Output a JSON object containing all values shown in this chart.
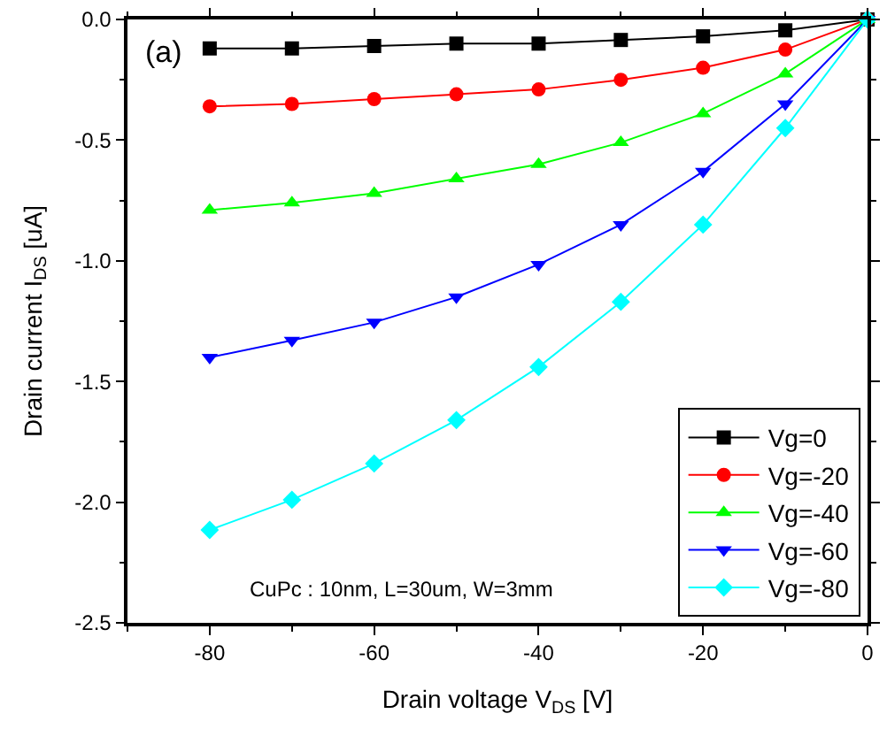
{
  "chart_data": {
    "type": "line",
    "xlabel": "Drain voltage V$_{DS}$ [V]",
    "ylabel": "Drain current I$_{DS}$ [uA]",
    "x": [
      -80,
      -70,
      -60,
      -50,
      -40,
      -30,
      -20,
      -10,
      0
    ],
    "series": [
      {
        "name": "Vg=0",
        "color": "#000000",
        "marker": "square",
        "values": [
          -0.12,
          -0.12,
          -0.11,
          -0.1,
          -0.1,
          -0.085,
          -0.07,
          -0.045,
          0
        ]
      },
      {
        "name": "Vg=-20",
        "color": "#ff0000",
        "marker": "circle",
        "values": [
          -0.36,
          -0.35,
          -0.33,
          -0.31,
          -0.29,
          -0.25,
          -0.2,
          -0.125,
          0
        ]
      },
      {
        "name": "Vg=-40",
        "color": "#00ff00",
        "marker": "triangle",
        "values": [
          -0.79,
          -0.76,
          -0.72,
          -0.66,
          -0.6,
          -0.51,
          -0.39,
          -0.225,
          0
        ]
      },
      {
        "name": "Vg=-60",
        "color": "#0000ff",
        "marker": "triangle-down",
        "values": [
          -1.4,
          -1.33,
          -1.255,
          -1.15,
          -1.015,
          -0.85,
          -0.63,
          -0.35,
          0
        ]
      },
      {
        "name": "Vg=-80",
        "color": "#00ffff",
        "marker": "diamond",
        "values": [
          -2.115,
          -1.99,
          -1.84,
          -1.66,
          -1.44,
          -1.17,
          -0.85,
          -0.45,
          0
        ]
      }
    ],
    "xlim": [
      -90,
      0
    ],
    "xticks": [
      -80,
      -60,
      -40,
      -20,
      0
    ],
    "ylim": [
      -2.5,
      0
    ],
    "yticks": [
      {
        "value": -2.5,
        "label": "-2.5"
      },
      {
        "value": -2.0,
        "label": "-2.0"
      },
      {
        "value": -1.5,
        "label": "-1.5"
      },
      {
        "value": -1.0,
        "label": "-1.0"
      },
      {
        "value": -0.5,
        "label": "-0.5"
      },
      {
        "value": 0,
        "label": "0.0"
      }
    ],
    "annotations": [
      "(a)",
      "CuPc : 10nm, L=30um, W=3mm"
    ],
    "legend": "bottom right",
    "line_style": "solid"
  }
}
